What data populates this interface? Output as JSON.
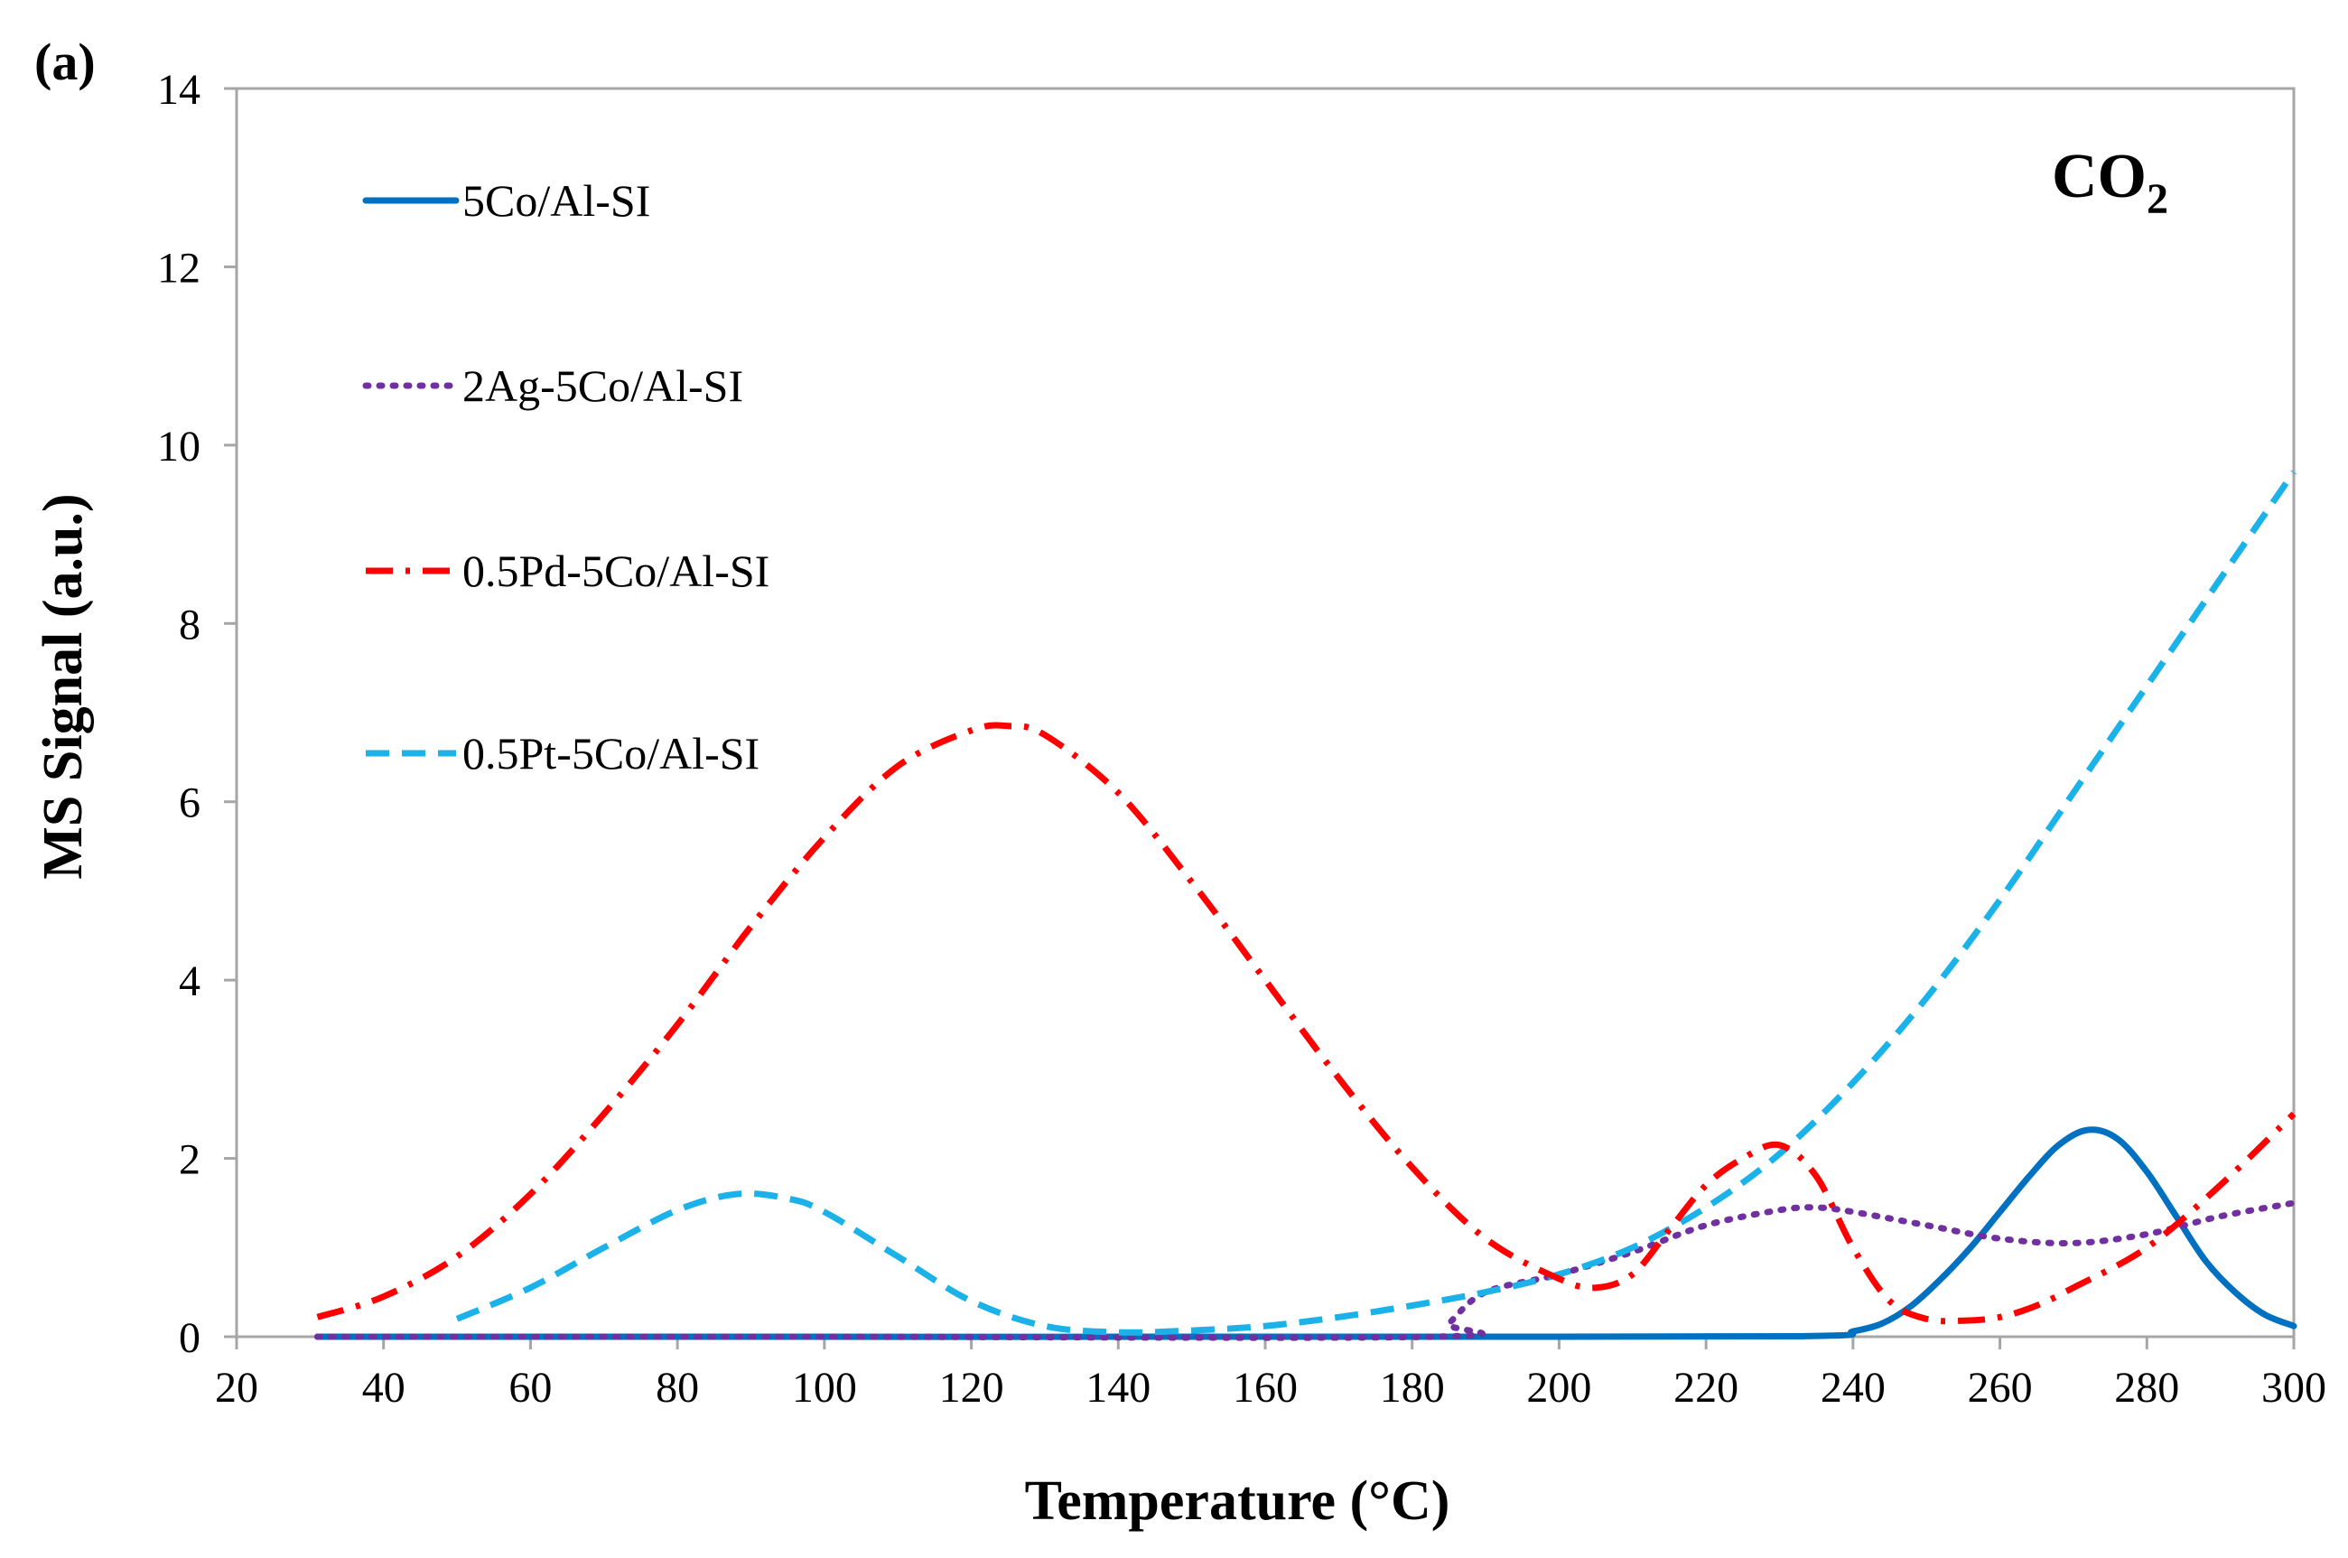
{
  "chart_data": {
    "type": "line",
    "panel_label": "(a)",
    "annotation": {
      "base": "CO",
      "subscript": "2"
    },
    "xlabel": "Temperature (°C)",
    "ylabel": "MS Signal (a.u.)",
    "xlim": [
      20,
      300
    ],
    "ylim": [
      0,
      14
    ],
    "xticks": [
      20,
      40,
      60,
      80,
      100,
      120,
      140,
      160,
      180,
      200,
      220,
      240,
      260,
      280,
      300
    ],
    "yticks": [
      0,
      2,
      4,
      6,
      8,
      10,
      12,
      14
    ],
    "grid": false,
    "legend_position": "top-left",
    "series": [
      {
        "name": "5Co/Al-SI",
        "color": "#0070c0",
        "dash": "solid",
        "x": [
          31,
          200,
          236,
          240,
          244,
          248,
          252,
          256,
          260,
          264,
          268,
          272,
          276,
          280,
          284,
          288,
          292,
          296,
          300
        ],
        "y": [
          0,
          0,
          0.01,
          0.06,
          0.15,
          0.35,
          0.65,
          1.0,
          1.4,
          1.8,
          2.15,
          2.32,
          2.22,
          1.85,
          1.35,
          0.85,
          0.5,
          0.25,
          0.12
        ]
      },
      {
        "name": "2Ag-5Co/Al-SI",
        "color": "#7030a0",
        "dash": "dotted",
        "x": [
          31,
          100,
          183,
          185,
          190,
          200,
          210,
          220,
          230,
          235,
          240,
          250,
          260,
          270,
          280,
          290,
          300
        ],
        "y": [
          0,
          0,
          0,
          0.15,
          0.5,
          0.7,
          0.95,
          1.25,
          1.42,
          1.45,
          1.4,
          1.25,
          1.1,
          1.05,
          1.15,
          1.35,
          1.5
        ]
      },
      {
        "name": "0.5Pd-5Co/Al-SI",
        "color": "#ff0000",
        "dash": "dashdot",
        "x": [
          31,
          40,
          50,
          60,
          70,
          80,
          90,
          100,
          110,
          120,
          125,
          130,
          140,
          150,
          160,
          170,
          180,
          190,
          200,
          205,
          210,
          215,
          220,
          225,
          230,
          235,
          240,
          245,
          250,
          255,
          260,
          265,
          270,
          280,
          290,
          300
        ],
        "y": [
          0.22,
          0.45,
          0.9,
          1.6,
          2.5,
          3.5,
          4.6,
          5.6,
          6.4,
          6.8,
          6.85,
          6.75,
          6.1,
          5.1,
          4.0,
          2.9,
          1.9,
          1.1,
          0.65,
          0.55,
          0.7,
          1.2,
          1.7,
          2.0,
          2.15,
          1.8,
          1.0,
          0.4,
          0.2,
          0.18,
          0.22,
          0.35,
          0.55,
          1.0,
          1.7,
          2.5
        ]
      },
      {
        "name": "0.5Pt-5Co/Al-SI",
        "color": "#1ab2e8",
        "dash": "dashed",
        "x": [
          50,
          60,
          70,
          80,
          88,
          95,
          100,
          110,
          120,
          130,
          140,
          150,
          160,
          170,
          180,
          190,
          200,
          210,
          220,
          230,
          240,
          250,
          260,
          270,
          280,
          290,
          300
        ],
        "y": [
          0.2,
          0.55,
          1.0,
          1.42,
          1.6,
          1.55,
          1.4,
          0.9,
          0.4,
          0.12,
          0.05,
          0.07,
          0.12,
          0.22,
          0.35,
          0.5,
          0.7,
          1.0,
          1.45,
          2.05,
          2.85,
          3.8,
          4.9,
          6.1,
          7.3,
          8.5,
          9.7
        ]
      }
    ]
  }
}
